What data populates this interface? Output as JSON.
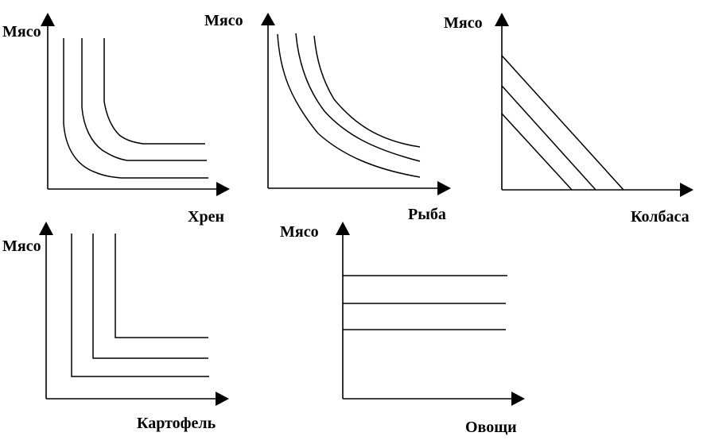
{
  "panels": {
    "horseradish": {
      "y_label": "Мясо",
      "x_label": "Хрен"
    },
    "fish": {
      "y_label": "Мясо",
      "x_label": "Рыба"
    },
    "sausage": {
      "y_label": "Мясо",
      "x_label": "Колбаса"
    },
    "potato": {
      "y_label": "Мясо",
      "x_label": "Картофель"
    },
    "vegetables": {
      "y_label": "Мясо",
      "x_label": "Овощи"
    }
  }
}
